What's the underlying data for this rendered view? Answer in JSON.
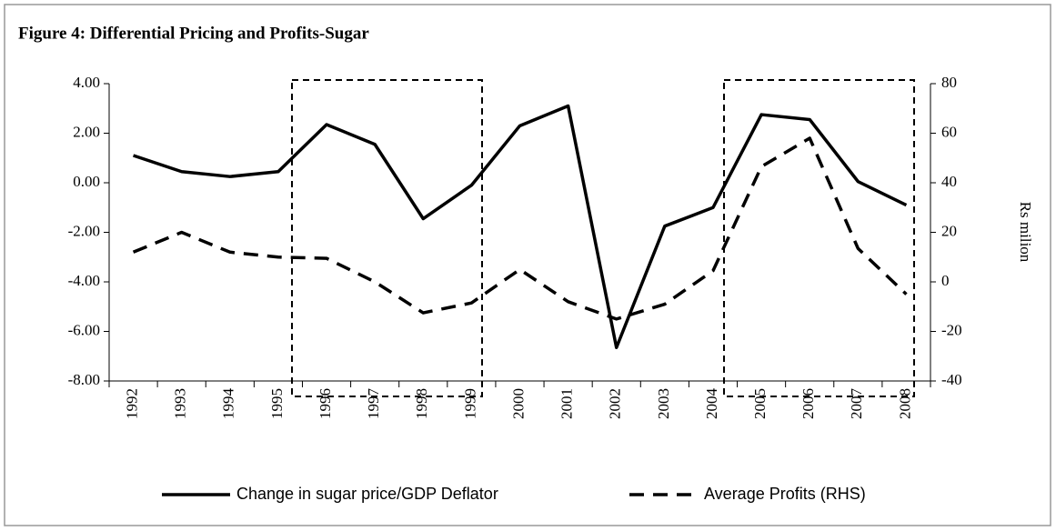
{
  "chart_data": {
    "type": "line",
    "title": "Figure 4: Differential Pricing and Profits-Sugar",
    "y2_label": "Rs milion",
    "categories": [
      "1992",
      "1993",
      "1994",
      "1995",
      "1996",
      "1997",
      "1998",
      "1999",
      "2000",
      "2001",
      "2002",
      "2003",
      "2004",
      "2005",
      "2006",
      "2007",
      "2008"
    ],
    "series": [
      {
        "name": "Change in sugar price/GDP Deflator",
        "color": "#000000",
        "dash": false,
        "values": [
          1.1,
          0.45,
          0.25,
          0.45,
          2.35,
          1.55,
          -1.45,
          -0.1,
          2.3,
          3.1,
          -6.65,
          -1.75,
          -1.0,
          2.75,
          2.55,
          0.05,
          -0.9
        ]
      },
      {
        "name": "Average Profits (RHS)",
        "color": "#000000",
        "dash": true,
        "axis": "y2",
        "values": [
          12,
          20,
          12,
          10,
          9.5,
          0,
          -12.5,
          -8.5,
          5,
          -8,
          -15,
          -9,
          4.5,
          46.5,
          58,
          13.5,
          -5
        ]
      }
    ],
    "ylim": [
      -8,
      4
    ],
    "yticks": [
      {
        "value": 4,
        "label": "4.00"
      },
      {
        "value": 2,
        "label": "2.00"
      },
      {
        "value": 0,
        "label": "0.00"
      },
      {
        "value": -2,
        "label": "-2.00"
      },
      {
        "value": -4,
        "label": "-4.00"
      },
      {
        "value": -6,
        "label": "-6.00"
      },
      {
        "value": -8,
        "label": "-8.00"
      }
    ],
    "y2lim": [
      -40,
      80
    ],
    "y2ticks": [
      80,
      60,
      40,
      20,
      0,
      -20,
      -40
    ],
    "legend": "bottom"
  }
}
